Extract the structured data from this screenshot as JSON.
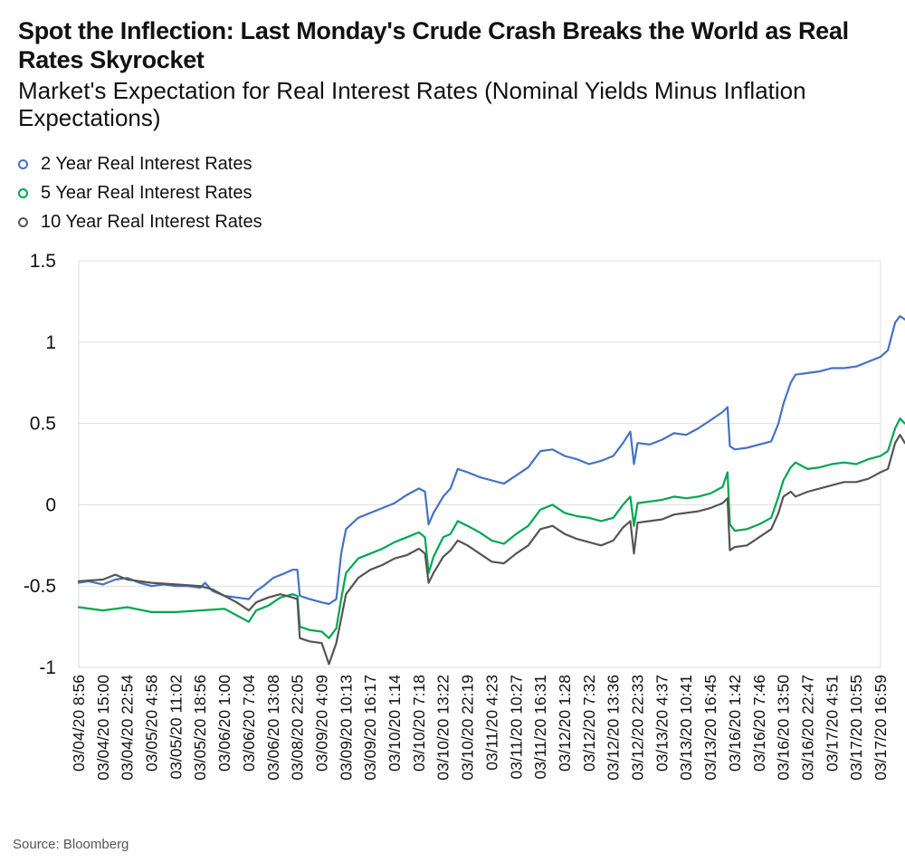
{
  "header": {
    "title": "Spot the Inflection: Last Monday's Crude Crash Breaks the World as Real Rates Skyrocket",
    "subtitle": "Market's Expectation for Real Interest Rates (Nominal Yields Minus Inflation Expectations)"
  },
  "footer": {
    "source": "Source: Bloomberg"
  },
  "chart_data": {
    "type": "line",
    "title": "Spot the Inflection: Last Monday's Crude Crash Breaks the World as Real Rates Skyrocket",
    "subtitle": "Market's Expectation for Real Interest Rates (Nominal Yields Minus Inflation Expectations)",
    "xlabel": "",
    "ylabel": "",
    "ylim": [
      -1,
      1.5
    ],
    "yticks": [
      1.5,
      1,
      0.5,
      0,
      -0.5,
      -1
    ],
    "ytick_labels": [
      "1.5",
      "1",
      "0.5",
      "0",
      "-0.5",
      "-1"
    ],
    "grid": "horizontal",
    "legend_position": "top-left",
    "x_tick_labels": [
      "03/04/20 8:56",
      "03/04/20 15:00",
      "03/04/20 22:54",
      "03/05/20 4:58",
      "03/05/20 11:02",
      "03/05/20 18:56",
      "03/06/20 1:00",
      "03/06/20 7:04",
      "03/06/20 13:08",
      "03/08/20 22:05",
      "03/09/20 4:09",
      "03/09/20 10:13",
      "03/09/20 16:17",
      "03/10/20 1:14",
      "03/10/20 7:18",
      "03/10/20 13:22",
      "03/10/20 22:19",
      "03/11/20 4:23",
      "03/11/20 10:27",
      "03/11/20 16:31",
      "03/12/20 1:28",
      "03/12/20 7:32",
      "03/12/20 13:36",
      "03/12/20 22:33",
      "03/13/20 4:37",
      "03/13/20 10:41",
      "03/13/20 16:45",
      "03/16/20 1:42",
      "03/16/20 7:46",
      "03/16/20 13:50",
      "03/16/20 22:47",
      "03/17/20 4:51",
      "03/17/20 10:55",
      "03/17/20 16:59"
    ],
    "series": [
      {
        "name": "2 Year Real Interest Rates",
        "color": "#4472c4",
        "points": [
          [
            0,
            -0.48
          ],
          [
            0.4,
            -0.47
          ],
          [
            1,
            -0.49
          ],
          [
            1.5,
            -0.46
          ],
          [
            2,
            -0.45
          ],
          [
            2.5,
            -0.48
          ],
          [
            3,
            -0.5
          ],
          [
            3.5,
            -0.49
          ],
          [
            4,
            -0.5
          ],
          [
            4.5,
            -0.5
          ],
          [
            5,
            -0.51
          ],
          [
            5.2,
            -0.48
          ],
          [
            5.5,
            -0.53
          ],
          [
            6,
            -0.56
          ],
          [
            6.5,
            -0.57
          ],
          [
            7,
            -0.58
          ],
          [
            7.3,
            -0.53
          ],
          [
            7.6,
            -0.5
          ],
          [
            8,
            -0.45
          ],
          [
            8.5,
            -0.42
          ],
          [
            8.8,
            -0.4
          ],
          [
            9,
            -0.4
          ],
          [
            9.1,
            -0.56
          ],
          [
            9.5,
            -0.58
          ],
          [
            10,
            -0.6
          ],
          [
            10.3,
            -0.61
          ],
          [
            10.6,
            -0.58
          ],
          [
            10.8,
            -0.3
          ],
          [
            11,
            -0.15
          ],
          [
            11.5,
            -0.08
          ],
          [
            12,
            -0.05
          ],
          [
            12.5,
            -0.02
          ],
          [
            13,
            0.01
          ],
          [
            13.5,
            0.06
          ],
          [
            14,
            0.1
          ],
          [
            14.25,
            0.08
          ],
          [
            14.4,
            -0.12
          ],
          [
            14.6,
            -0.05
          ],
          [
            15,
            0.05
          ],
          [
            15.3,
            0.1
          ],
          [
            15.6,
            0.22
          ],
          [
            16,
            0.2
          ],
          [
            16.5,
            0.17
          ],
          [
            17,
            0.15
          ],
          [
            17.5,
            0.13
          ],
          [
            18,
            0.18
          ],
          [
            18.5,
            0.23
          ],
          [
            19,
            0.33
          ],
          [
            19.5,
            0.34
          ],
          [
            20,
            0.3
          ],
          [
            20.5,
            0.28
          ],
          [
            21,
            0.25
          ],
          [
            21.5,
            0.27
          ],
          [
            22,
            0.3
          ],
          [
            22.4,
            0.38
          ],
          [
            22.7,
            0.45
          ],
          [
            22.85,
            0.25
          ],
          [
            23,
            0.38
          ],
          [
            23.5,
            0.37
          ],
          [
            24,
            0.4
          ],
          [
            24.5,
            0.44
          ],
          [
            25,
            0.43
          ],
          [
            25.5,
            0.47
          ],
          [
            26,
            0.52
          ],
          [
            26.5,
            0.57
          ],
          [
            26.7,
            0.6
          ],
          [
            26.8,
            0.36
          ],
          [
            27,
            0.34
          ],
          [
            27.5,
            0.35
          ],
          [
            28,
            0.37
          ],
          [
            28.5,
            0.39
          ],
          [
            28.8,
            0.5
          ],
          [
            29,
            0.62
          ],
          [
            29.3,
            0.75
          ],
          [
            29.5,
            0.8
          ],
          [
            30,
            0.81
          ],
          [
            30.5,
            0.82
          ],
          [
            31,
            0.84
          ],
          [
            31.5,
            0.84
          ],
          [
            32,
            0.85
          ],
          [
            32.5,
            0.88
          ],
          [
            33,
            0.91
          ],
          [
            33.3,
            0.95
          ],
          [
            33.6,
            1.12
          ],
          [
            33.8,
            1.16
          ],
          [
            34,
            1.14
          ]
        ]
      },
      {
        "name": "5 Year Real Interest Rates",
        "color": "#00a650",
        "points": [
          [
            0,
            -0.63
          ],
          [
            1,
            -0.65
          ],
          [
            2,
            -0.63
          ],
          [
            3,
            -0.66
          ],
          [
            4,
            -0.66
          ],
          [
            5,
            -0.65
          ],
          [
            6,
            -0.64
          ],
          [
            6.5,
            -0.68
          ],
          [
            7,
            -0.72
          ],
          [
            7.3,
            -0.65
          ],
          [
            7.8,
            -0.62
          ],
          [
            8.3,
            -0.57
          ],
          [
            8.8,
            -0.55
          ],
          [
            9,
            -0.56
          ],
          [
            9.1,
            -0.75
          ],
          [
            9.5,
            -0.77
          ],
          [
            10,
            -0.78
          ],
          [
            10.3,
            -0.82
          ],
          [
            10.6,
            -0.76
          ],
          [
            10.8,
            -0.58
          ],
          [
            11,
            -0.42
          ],
          [
            11.5,
            -0.33
          ],
          [
            12,
            -0.3
          ],
          [
            12.5,
            -0.27
          ],
          [
            13,
            -0.23
          ],
          [
            13.5,
            -0.2
          ],
          [
            14,
            -0.17
          ],
          [
            14.25,
            -0.2
          ],
          [
            14.4,
            -0.42
          ],
          [
            14.6,
            -0.32
          ],
          [
            15,
            -0.2
          ],
          [
            15.3,
            -0.18
          ],
          [
            15.6,
            -0.1
          ],
          [
            16,
            -0.13
          ],
          [
            16.5,
            -0.17
          ],
          [
            17,
            -0.22
          ],
          [
            17.5,
            -0.24
          ],
          [
            18,
            -0.18
          ],
          [
            18.5,
            -0.13
          ],
          [
            19,
            -0.03
          ],
          [
            19.5,
            0.0
          ],
          [
            20,
            -0.05
          ],
          [
            20.5,
            -0.07
          ],
          [
            21,
            -0.08
          ],
          [
            21.5,
            -0.1
          ],
          [
            22,
            -0.08
          ],
          [
            22.4,
            0.0
          ],
          [
            22.7,
            0.05
          ],
          [
            22.85,
            -0.13
          ],
          [
            23,
            0.01
          ],
          [
            23.5,
            0.02
          ],
          [
            24,
            0.03
          ],
          [
            24.5,
            0.05
          ],
          [
            25,
            0.04
          ],
          [
            25.5,
            0.05
          ],
          [
            26,
            0.07
          ],
          [
            26.5,
            0.11
          ],
          [
            26.7,
            0.2
          ],
          [
            26.8,
            -0.12
          ],
          [
            27,
            -0.16
          ],
          [
            27.5,
            -0.15
          ],
          [
            28,
            -0.12
          ],
          [
            28.5,
            -0.08
          ],
          [
            28.8,
            0.05
          ],
          [
            29,
            0.15
          ],
          [
            29.3,
            0.23
          ],
          [
            29.5,
            0.26
          ],
          [
            30,
            0.22
          ],
          [
            30.5,
            0.23
          ],
          [
            31,
            0.25
          ],
          [
            31.5,
            0.26
          ],
          [
            32,
            0.25
          ],
          [
            32.5,
            0.28
          ],
          [
            33,
            0.3
          ],
          [
            33.3,
            0.33
          ],
          [
            33.6,
            0.47
          ],
          [
            33.8,
            0.53
          ],
          [
            34,
            0.5
          ]
        ]
      },
      {
        "name": "10 Year Real Interest Rates",
        "color": "#555555",
        "points": [
          [
            0,
            -0.47
          ],
          [
            1,
            -0.46
          ],
          [
            1.5,
            -0.43
          ],
          [
            2,
            -0.46
          ],
          [
            3,
            -0.48
          ],
          [
            4,
            -0.49
          ],
          [
            5,
            -0.5
          ],
          [
            5.5,
            -0.52
          ],
          [
            6,
            -0.56
          ],
          [
            6.5,
            -0.6
          ],
          [
            7,
            -0.65
          ],
          [
            7.3,
            -0.6
          ],
          [
            7.8,
            -0.57
          ],
          [
            8.3,
            -0.55
          ],
          [
            8.8,
            -0.57
          ],
          [
            9,
            -0.58
          ],
          [
            9.1,
            -0.82
          ],
          [
            9.5,
            -0.84
          ],
          [
            10,
            -0.85
          ],
          [
            10.3,
            -0.98
          ],
          [
            10.6,
            -0.85
          ],
          [
            10.8,
            -0.7
          ],
          [
            11,
            -0.55
          ],
          [
            11.5,
            -0.45
          ],
          [
            12,
            -0.4
          ],
          [
            12.5,
            -0.37
          ],
          [
            13,
            -0.33
          ],
          [
            13.5,
            -0.31
          ],
          [
            14,
            -0.27
          ],
          [
            14.25,
            -0.3
          ],
          [
            14.4,
            -0.48
          ],
          [
            14.6,
            -0.42
          ],
          [
            15,
            -0.32
          ],
          [
            15.3,
            -0.28
          ],
          [
            15.6,
            -0.22
          ],
          [
            16,
            -0.25
          ],
          [
            16.5,
            -0.3
          ],
          [
            17,
            -0.35
          ],
          [
            17.5,
            -0.36
          ],
          [
            18,
            -0.3
          ],
          [
            18.5,
            -0.25
          ],
          [
            19,
            -0.15
          ],
          [
            19.5,
            -0.13
          ],
          [
            20,
            -0.18
          ],
          [
            20.5,
            -0.21
          ],
          [
            21,
            -0.23
          ],
          [
            21.5,
            -0.25
          ],
          [
            22,
            -0.22
          ],
          [
            22.4,
            -0.14
          ],
          [
            22.7,
            -0.1
          ],
          [
            22.85,
            -0.3
          ],
          [
            23,
            -0.11
          ],
          [
            23.5,
            -0.1
          ],
          [
            24,
            -0.09
          ],
          [
            24.5,
            -0.06
          ],
          [
            25,
            -0.05
          ],
          [
            25.5,
            -0.04
          ],
          [
            26,
            -0.02
          ],
          [
            26.5,
            0.01
          ],
          [
            26.7,
            0.04
          ],
          [
            26.8,
            -0.28
          ],
          [
            27,
            -0.26
          ],
          [
            27.5,
            -0.25
          ],
          [
            28,
            -0.2
          ],
          [
            28.5,
            -0.15
          ],
          [
            28.8,
            -0.05
          ],
          [
            29,
            0.05
          ],
          [
            29.3,
            0.08
          ],
          [
            29.5,
            0.05
          ],
          [
            30,
            0.08
          ],
          [
            30.5,
            0.1
          ],
          [
            31,
            0.12
          ],
          [
            31.5,
            0.14
          ],
          [
            32,
            0.14
          ],
          [
            32.5,
            0.16
          ],
          [
            33,
            0.2
          ],
          [
            33.3,
            0.22
          ],
          [
            33.6,
            0.38
          ],
          [
            33.8,
            0.43
          ],
          [
            34,
            0.38
          ]
        ]
      }
    ]
  }
}
